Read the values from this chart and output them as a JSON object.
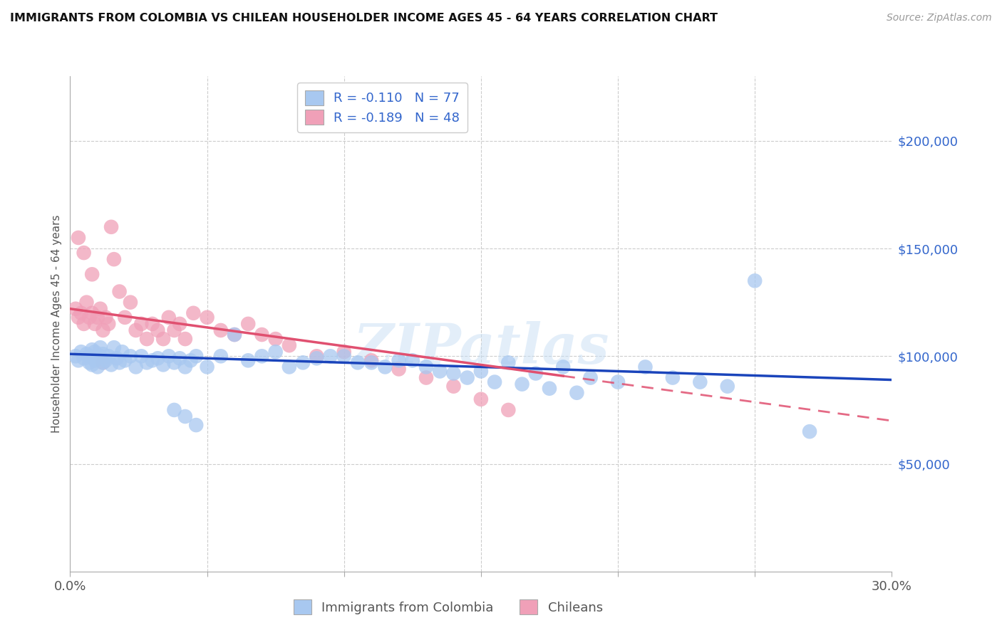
{
  "title": "IMMIGRANTS FROM COLOMBIA VS CHILEAN HOUSEHOLDER INCOME AGES 45 - 64 YEARS CORRELATION CHART",
  "source": "Source: ZipAtlas.com",
  "ylabel": "Householder Income Ages 45 - 64 years",
  "xlim": [
    0.0,
    0.3
  ],
  "ylim": [
    0,
    230000
  ],
  "ytick_vals": [
    50000,
    100000,
    150000,
    200000
  ],
  "ytick_labels": [
    "$50,000",
    "$100,000",
    "$150,000",
    "$200,000"
  ],
  "xtick_vals": [
    0.0,
    0.05,
    0.1,
    0.15,
    0.2,
    0.25,
    0.3
  ],
  "xtick_labels": [
    "0.0%",
    "",
    "",
    "",
    "",
    "",
    "30.0%"
  ],
  "color_blue": "#a8c8f0",
  "color_pink": "#f0a0b8",
  "line_color_blue": "#1a44bb",
  "line_color_pink": "#e05070",
  "legend_label_blue": "Immigrants from Colombia",
  "legend_label_pink": "Chileans",
  "legend_r_blue": "R = -0.110",
  "legend_n_blue": "N = 77",
  "legend_r_pink": "R = -0.189",
  "legend_n_pink": "N = 48",
  "watermark": "ZIPatlas",
  "blue_line_x0": 0.0,
  "blue_line_y0": 101000,
  "blue_line_x1": 0.3,
  "blue_line_y1": 89000,
  "pink_line_x0": 0.0,
  "pink_line_y0": 122000,
  "pink_line_x1_solid": 0.18,
  "pink_line_x1": 0.3,
  "pink_line_y1": 70000,
  "blue_x": [
    0.002,
    0.003,
    0.004,
    0.005,
    0.006,
    0.007,
    0.007,
    0.008,
    0.008,
    0.009,
    0.009,
    0.01,
    0.01,
    0.011,
    0.011,
    0.012,
    0.012,
    0.013,
    0.014,
    0.015,
    0.016,
    0.017,
    0.018,
    0.019,
    0.02,
    0.022,
    0.024,
    0.026,
    0.028,
    0.03,
    0.032,
    0.034,
    0.036,
    0.038,
    0.04,
    0.042,
    0.044,
    0.046,
    0.05,
    0.055,
    0.06,
    0.065,
    0.07,
    0.075,
    0.08,
    0.085,
    0.09,
    0.1,
    0.11,
    0.12,
    0.13,
    0.14,
    0.15,
    0.16,
    0.17,
    0.18,
    0.19,
    0.2,
    0.21,
    0.22,
    0.23,
    0.24,
    0.095,
    0.105,
    0.115,
    0.125,
    0.135,
    0.145,
    0.155,
    0.165,
    0.175,
    0.185,
    0.25,
    0.27,
    0.038,
    0.042,
    0.046
  ],
  "blue_y": [
    100000,
    98000,
    102000,
    99000,
    101000,
    100000,
    97000,
    103000,
    96000,
    98000,
    102000,
    99000,
    95000,
    104000,
    100000,
    97000,
    101000,
    98000,
    100000,
    96000,
    104000,
    99000,
    97000,
    102000,
    98000,
    100000,
    95000,
    100000,
    97000,
    98000,
    99000,
    96000,
    100000,
    97000,
    99000,
    95000,
    98000,
    100000,
    95000,
    100000,
    110000,
    98000,
    100000,
    102000,
    95000,
    97000,
    99000,
    100000,
    97000,
    98000,
    95000,
    92000,
    93000,
    97000,
    92000,
    95000,
    90000,
    88000,
    95000,
    90000,
    88000,
    86000,
    100000,
    97000,
    95000,
    98000,
    93000,
    90000,
    88000,
    87000,
    85000,
    83000,
    135000,
    65000,
    75000,
    72000,
    68000
  ],
  "pink_x": [
    0.002,
    0.003,
    0.004,
    0.005,
    0.006,
    0.007,
    0.008,
    0.009,
    0.01,
    0.011,
    0.012,
    0.013,
    0.014,
    0.015,
    0.016,
    0.018,
    0.02,
    0.022,
    0.024,
    0.026,
    0.028,
    0.03,
    0.032,
    0.034,
    0.036,
    0.038,
    0.04,
    0.042,
    0.045,
    0.05,
    0.055,
    0.06,
    0.065,
    0.07,
    0.075,
    0.08,
    0.09,
    0.1,
    0.11,
    0.12,
    0.13,
    0.14,
    0.15,
    0.16,
    0.003,
    0.005,
    0.008,
    0.012
  ],
  "pink_y": [
    122000,
    118000,
    120000,
    115000,
    125000,
    118000,
    120000,
    115000,
    118000,
    122000,
    112000,
    118000,
    115000,
    160000,
    145000,
    130000,
    118000,
    125000,
    112000,
    115000,
    108000,
    115000,
    112000,
    108000,
    118000,
    112000,
    115000,
    108000,
    120000,
    118000,
    112000,
    110000,
    115000,
    110000,
    108000,
    105000,
    100000,
    102000,
    98000,
    94000,
    90000,
    86000,
    80000,
    75000,
    155000,
    148000,
    138000,
    97000
  ]
}
